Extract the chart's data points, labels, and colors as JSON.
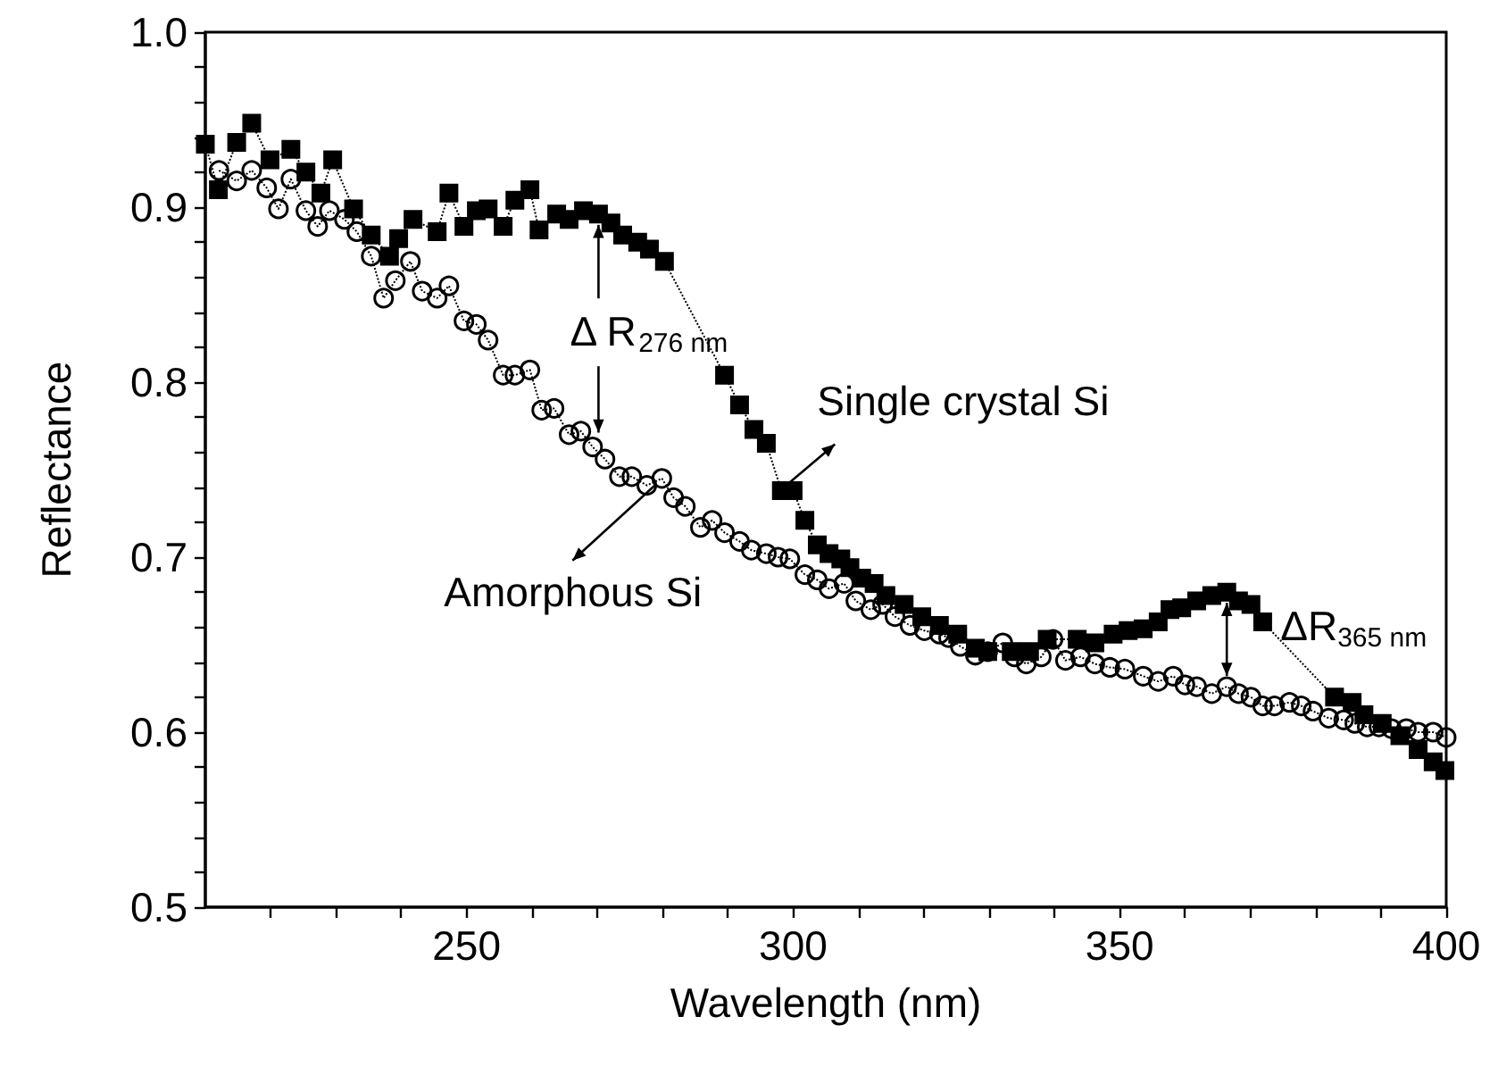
{
  "chart_data": {
    "type": "line",
    "xlabel": "Wavelength (nm)",
    "ylabel": "Reflectance",
    "xlim": [
      210,
      400
    ],
    "xticks": [
      {
        "value": 220,
        "label": null
      },
      {
        "value": 230,
        "label": null
      },
      {
        "value": 240,
        "label": null
      },
      250,
      {
        "value": 260,
        "label": null
      },
      {
        "value": 270,
        "label": null
      },
      {
        "value": 280,
        "label": null
      },
      {
        "value": 290,
        "label": null
      },
      300,
      {
        "value": 310,
        "label": null
      },
      {
        "value": 320,
        "label": null
      },
      {
        "value": 330,
        "label": null
      },
      {
        "value": 340,
        "label": null
      },
      350,
      {
        "value": 360,
        "label": null
      },
      {
        "value": 370,
        "label": null
      },
      {
        "value": 380,
        "label": null
      },
      {
        "value": 390,
        "label": null
      },
      400
    ],
    "ylim": [
      0.5,
      1.0
    ],
    "yticks": [
      0.5,
      {
        "value": 0.52,
        "label": null
      },
      {
        "value": 0.54,
        "label": null
      },
      {
        "value": 0.56,
        "label": null
      },
      {
        "value": 0.58,
        "label": null
      },
      0.6,
      {
        "value": 0.62,
        "label": null
      },
      {
        "value": 0.64,
        "label": null
      },
      {
        "value": 0.66,
        "label": null
      },
      {
        "value": 0.68,
        "label": null
      },
      0.7,
      {
        "value": 0.72,
        "label": null
      },
      {
        "value": 0.74,
        "label": null
      },
      {
        "value": 0.76,
        "label": null
      },
      {
        "value": 0.78,
        "label": null
      },
      0.8,
      {
        "value": 0.82,
        "label": null
      },
      {
        "value": 0.84,
        "label": null
      },
      {
        "value": 0.86,
        "label": null
      },
      {
        "value": 0.88,
        "label": null
      },
      0.9,
      {
        "value": 0.92,
        "label": null
      },
      {
        "value": 0.94,
        "label": null
      },
      {
        "value": 0.96,
        "label": null
      },
      {
        "value": 0.98,
        "label": null
      },
      {
        "value": 1.0,
        "label": "1.0"
      }
    ],
    "grid": false,
    "line_style": "dotted",
    "series": [
      {
        "color": "#000000",
        "marker": "square",
        "x": [
          210,
          212,
          214.8,
          217.1,
          219.9,
          223.1,
          225.4,
          227.7,
          229.5,
          232.7,
          235.4,
          238.2,
          239.6,
          241.8,
          245.5,
          247.3,
          249.6,
          251.5,
          253.3,
          255.6,
          257.4,
          259.7,
          261.1,
          263.8,
          265.7,
          267.9,
          270.2,
          272.1,
          273.9,
          276.2,
          278,
          280.3,
          289.5,
          291.8,
          294,
          295.9,
          298.2,
          300,
          301.8,
          303.7,
          305.5,
          307.3,
          308.7,
          310.5,
          312.4,
          314.2,
          317,
          319.7,
          322.4,
          325.2,
          327.9,
          329.8,
          333.4,
          336.2,
          338.9,
          343.5,
          346.2,
          349,
          351.3,
          353.6,
          355.9,
          357.7,
          359.5,
          361.8,
          364.1,
          366.4,
          368.2,
          370.1,
          371.9,
          382.9,
          385.6,
          387.4,
          390.2,
          392.9,
          395.7,
          398,
          399.8
        ],
        "values": [
          0.936,
          0.91,
          0.937,
          0.948,
          0.927,
          0.933,
          0.92,
          0.908,
          0.927,
          0.899,
          0.884,
          0.872,
          0.882,
          0.893,
          0.886,
          0.908,
          0.889,
          0.898,
          0.899,
          0.889,
          0.904,
          0.91,
          0.887,
          0.896,
          0.893,
          0.898,
          0.896,
          0.891,
          0.884,
          0.88,
          0.876,
          0.869,
          0.804,
          0.787,
          0.773,
          0.765,
          0.738,
          0.738,
          0.721,
          0.707,
          0.702,
          0.699,
          0.694,
          0.688,
          0.685,
          0.678,
          0.673,
          0.666,
          0.661,
          0.656,
          0.648,
          0.646,
          0.646,
          0.646,
          0.653,
          0.653,
          0.651,
          0.656,
          0.658,
          0.659,
          0.663,
          0.67,
          0.671,
          0.675,
          0.678,
          0.68,
          0.675,
          0.673,
          0.663,
          0.62,
          0.617,
          0.61,
          0.605,
          0.598,
          0.59,
          0.583,
          0.578
        ]
      },
      {
        "color": "#000000",
        "marker": "circle",
        "x": [
          212.1,
          214.8,
          217.1,
          219.4,
          221.2,
          223.1,
          225.4,
          227.2,
          229,
          231.3,
          233.2,
          235.4,
          237.3,
          239.1,
          241.4,
          243.2,
          245.5,
          247.3,
          249.6,
          251.5,
          253.3,
          255.6,
          257.4,
          259.7,
          261.5,
          263.4,
          265.7,
          267.5,
          269.3,
          271.2,
          273.4,
          275.3,
          277.6,
          279.9,
          281.7,
          283.5,
          285.8,
          287.6,
          289.5,
          291.8,
          293.6,
          295.9,
          297.7,
          299.5,
          301.8,
          303.7,
          305.5,
          307.8,
          309.6,
          311.9,
          313.7,
          315.6,
          317.9,
          320.1,
          322.4,
          323.8,
          325.6,
          327.9,
          329.8,
          332.1,
          333.9,
          335.7,
          338,
          339.8,
          341.7,
          344,
          346.2,
          348.5,
          350.8,
          353.6,
          355.9,
          358.2,
          360,
          361.8,
          364.1,
          366.4,
          368.2,
          370.1,
          371.9,
          373.7,
          376,
          377.8,
          379.6,
          382,
          384.3,
          386,
          387.9,
          389.7,
          391.6,
          393.9,
          395.7,
          398,
          400
        ],
        "values": [
          0.921,
          0.915,
          0.921,
          0.911,
          0.899,
          0.916,
          0.898,
          0.889,
          0.898,
          0.893,
          0.886,
          0.872,
          0.848,
          0.858,
          0.869,
          0.852,
          0.848,
          0.855,
          0.835,
          0.833,
          0.824,
          0.804,
          0.804,
          0.807,
          0.784,
          0.785,
          0.77,
          0.772,
          0.763,
          0.756,
          0.746,
          0.746,
          0.741,
          0.745,
          0.734,
          0.729,
          0.717,
          0.721,
          0.714,
          0.709,
          0.704,
          0.702,
          0.7,
          0.699,
          0.69,
          0.687,
          0.682,
          0.685,
          0.675,
          0.67,
          0.673,
          0.666,
          0.661,
          0.658,
          0.656,
          0.654,
          0.649,
          0.644,
          0.646,
          0.651,
          0.643,
          0.639,
          0.643,
          0.653,
          0.641,
          0.643,
          0.639,
          0.637,
          0.636,
          0.632,
          0.629,
          0.632,
          0.627,
          0.626,
          0.622,
          0.626,
          0.622,
          0.62,
          0.615,
          0.615,
          0.617,
          0.615,
          0.612,
          0.608,
          0.607,
          0.605,
          0.603,
          0.603,
          0.602,
          0.602,
          0.6,
          0.6,
          0.597
        ]
      }
    ],
    "annotations": [
      {
        "text": "Δ R$_{276 nm}$",
        "x": 270.2,
        "y": 0.896
      },
      {
        "text": "ΔR$_{365 nm}$",
        "x": 366.4,
        "y": 0.68
      },
      {
        "text": "Single crystal Si",
        "x": 298.2,
        "y": 0.738
      },
      {
        "text": "Amorphous Si",
        "x": 279.9,
        "y": 0.745
      }
    ]
  }
}
